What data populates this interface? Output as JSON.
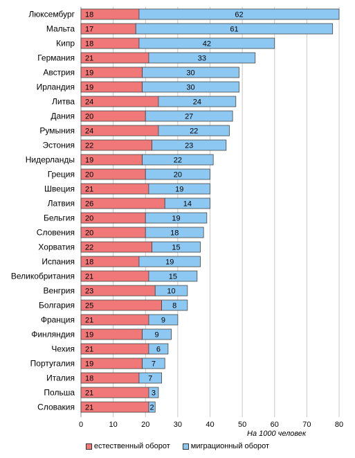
{
  "chart_data": {
    "type": "bar",
    "orientation": "horizontal",
    "stacked": true,
    "categories": [
      "Люксембург",
      "Мальта",
      "Кипр",
      "Германия",
      "Австрия",
      "Ирландия",
      "Литва",
      "Дания",
      "Румыния",
      "Эстония",
      "Нидерланды",
      "Греция",
      "Швеция",
      "Латвия",
      "Бельгия",
      "Словения",
      "Хорватия",
      "Испания",
      "Великобритания",
      "Венгрия",
      "Болгария",
      "Франция",
      "Финляндия",
      "Чехия",
      "Португалия",
      "Италия",
      "Польша",
      "Словакия"
    ],
    "series": [
      {
        "name": "естественный оборот",
        "color": "#f07878",
        "values": [
          18,
          17,
          18,
          21,
          19,
          19,
          24,
          20,
          24,
          22,
          19,
          20,
          21,
          26,
          20,
          20,
          22,
          18,
          21,
          23,
          25,
          21,
          19,
          21,
          19,
          18,
          21,
          21
        ]
      },
      {
        "name": "миграционный оборот",
        "color": "#8dc8f2",
        "values": [
          62,
          61,
          42,
          33,
          30,
          30,
          24,
          27,
          22,
          23,
          22,
          20,
          19,
          14,
          19,
          18,
          15,
          19,
          15,
          10,
          8,
          9,
          9,
          6,
          7,
          7,
          3,
          2
        ]
      }
    ],
    "xticks": [
      "0",
      "10",
      "20",
      "30",
      "40",
      "50",
      "60",
      "70",
      "80"
    ],
    "xlim": [
      0,
      80
    ],
    "xlabel": "На 1000 человек",
    "grid": true,
    "legend_position": "bottom"
  }
}
